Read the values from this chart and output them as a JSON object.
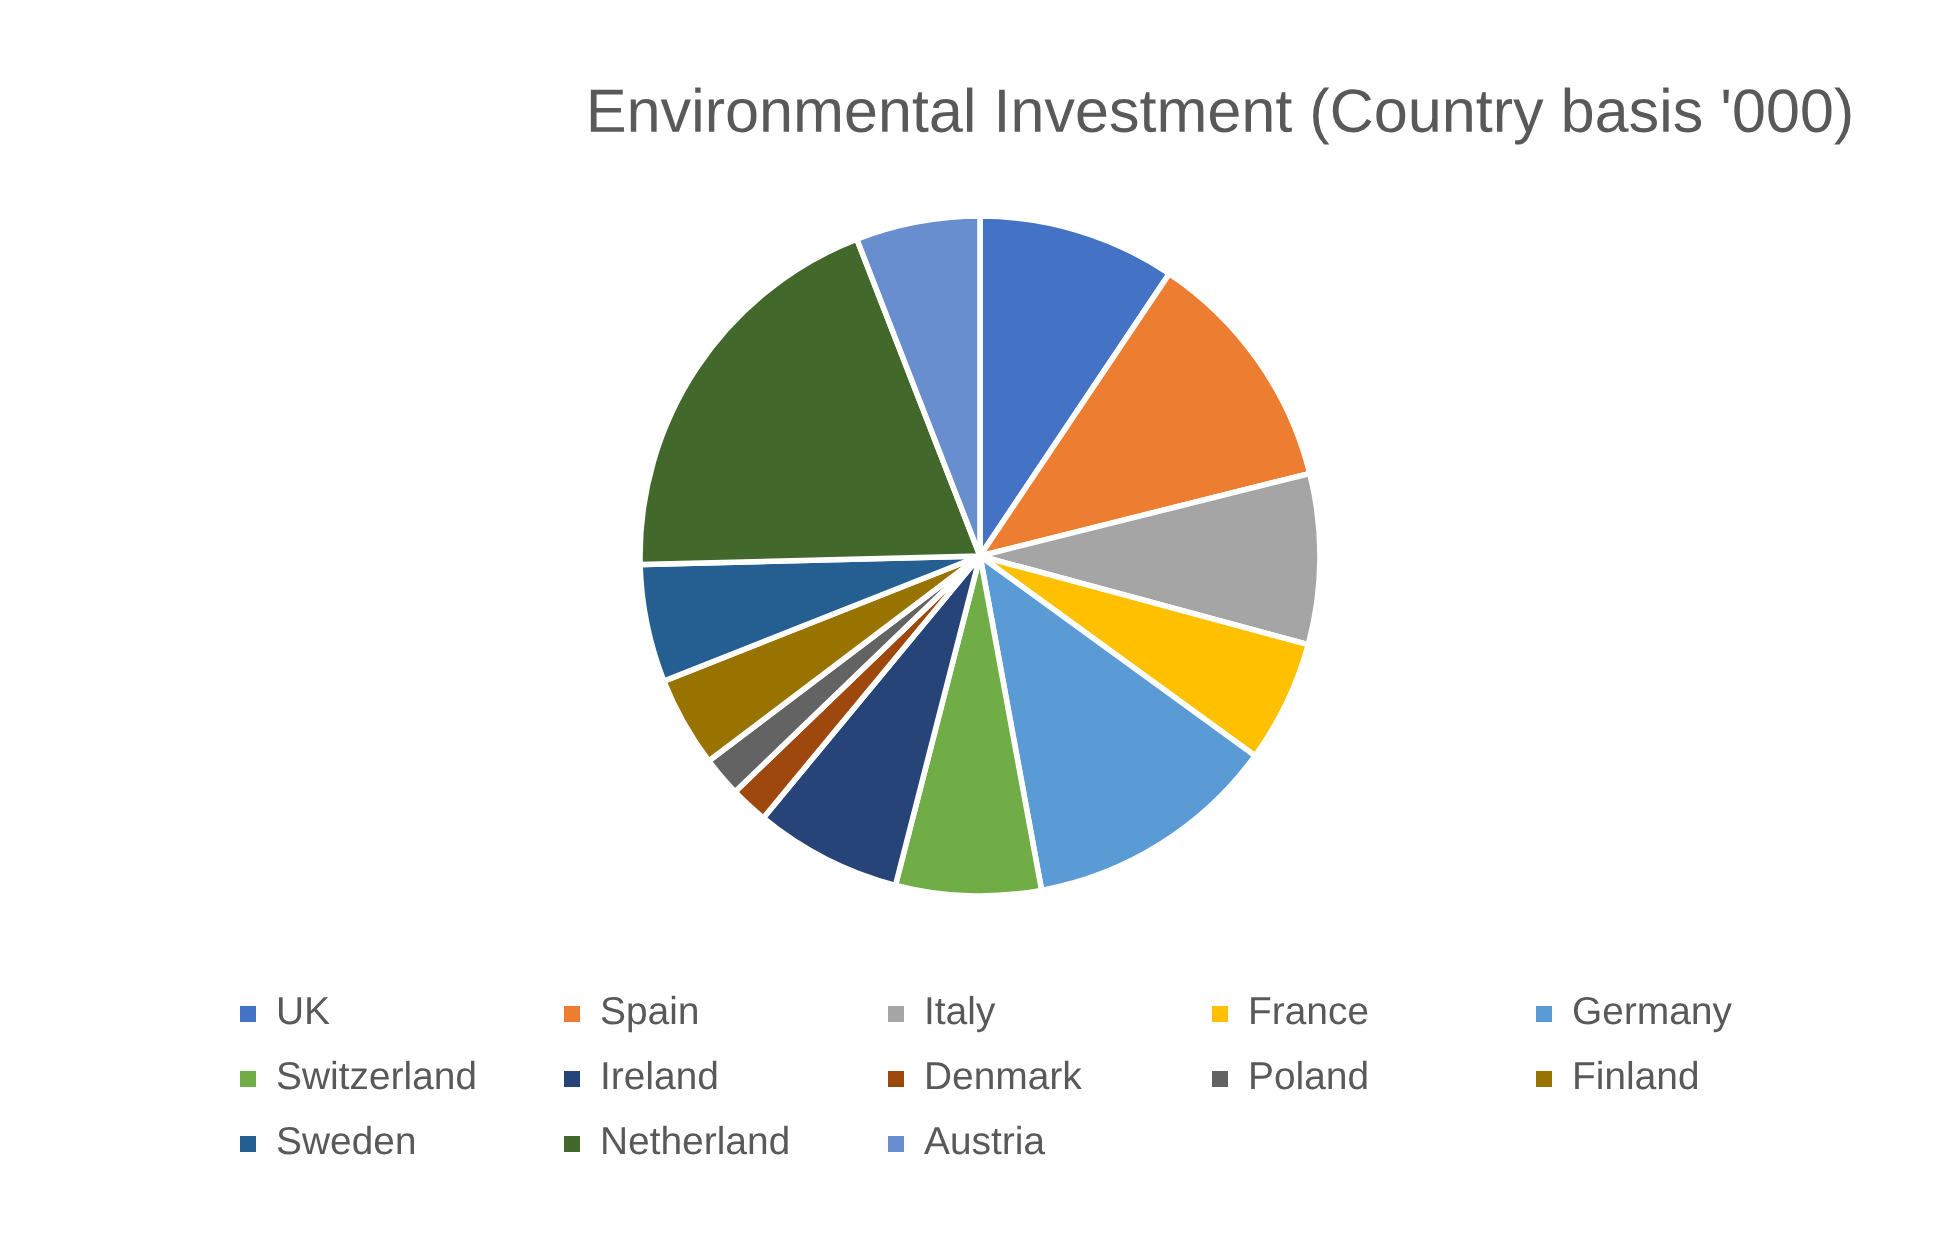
{
  "chart_data": {
    "type": "pie",
    "title": "Environmental Investment (Country basis '000)",
    "categories": [
      "UK",
      "Spain",
      "Italy",
      "France",
      "Germany",
      "Switzerland",
      "Ireland",
      "Denmark",
      "Poland",
      "Finland",
      "Sweden",
      "Netherland",
      "Austria"
    ],
    "values": [
      9.4,
      11.7,
      8.1,
      5.8,
      12.1,
      6.9,
      7.0,
      1.8,
      1.9,
      4.3,
      5.6,
      19.5,
      5.9
    ],
    "colors": [
      "#4472c4",
      "#ed7d31",
      "#a5a5a5",
      "#ffc000",
      "#5b9bd5",
      "#70ad47",
      "#264478",
      "#9e480e",
      "#636363",
      "#997300",
      "#255e91",
      "#43682b",
      "#698ed0"
    ],
    "legend": "bottom"
  }
}
